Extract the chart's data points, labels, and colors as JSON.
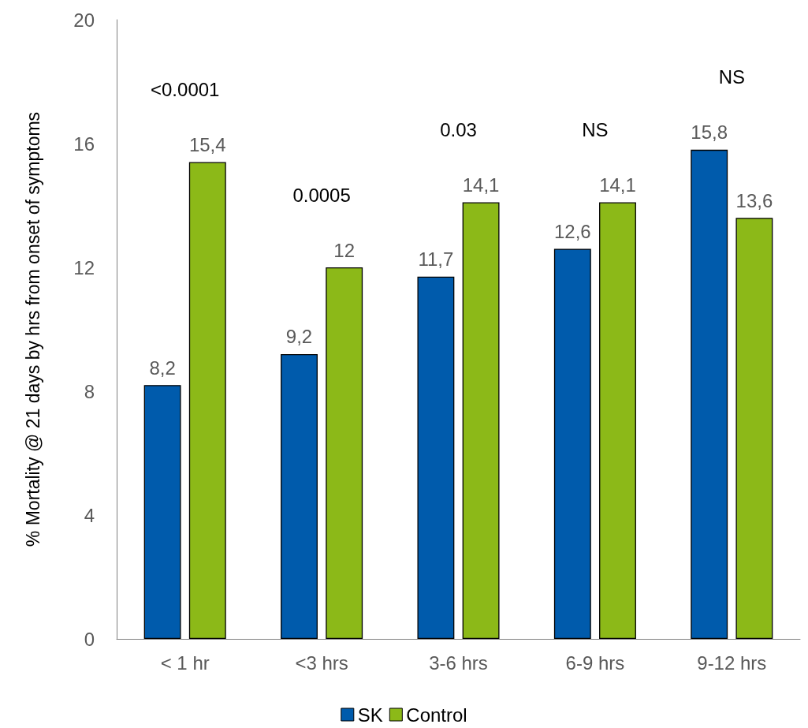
{
  "chart_data": {
    "type": "bar",
    "ylabel": "% Mortality @ 21 days by hrs from onset of symptoms",
    "categories": [
      "< 1 hr",
      "<3 hrs",
      "3-6 hrs",
      "6-9 hrs",
      "9-12 hrs"
    ],
    "series": [
      {
        "name": "SK",
        "color": "#005bac",
        "values": [
          8.2,
          9.2,
          11.7,
          12.6,
          15.8
        ],
        "value_labels": [
          "8,2",
          "9,2",
          "11,7",
          "12,6",
          "15,8"
        ]
      },
      {
        "name": "Control",
        "color": "#8cb918",
        "values": [
          15.4,
          12,
          14.1,
          14.1,
          13.6
        ],
        "value_labels": [
          "15,4",
          "12",
          "14,1",
          "14,1",
          "13,6"
        ]
      }
    ],
    "ylim": [
      0,
      20
    ],
    "yticks": [
      0,
      4,
      8,
      12,
      16,
      20
    ],
    "grid": false,
    "legend": "bottom",
    "annotations": [
      "<0.0001",
      "0.0005",
      "0.03",
      "NS",
      "NS"
    ]
  }
}
